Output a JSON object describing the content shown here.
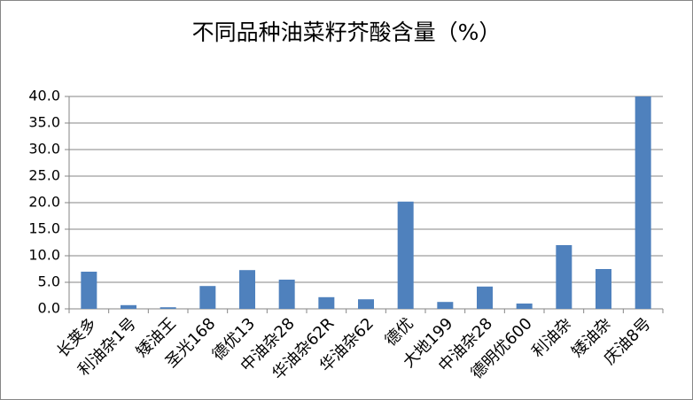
{
  "chart_data": {
    "type": "bar",
    "title": "不同品种油菜籽芥酸含量（%）",
    "categories": [
      "长荚多",
      "利油杂1号",
      "矮油王",
      "圣光168",
      "德优13",
      "中油杂28",
      "华油杂62R",
      "华油杂62",
      "德优",
      "大地199",
      "中油杂28",
      "德明优600",
      "利油杂",
      "矮油杂",
      "庆油8号"
    ],
    "values": [
      7.0,
      0.7,
      0.3,
      4.3,
      7.3,
      5.5,
      2.2,
      1.8,
      20.2,
      1.3,
      4.2,
      1.0,
      12.0,
      7.5,
      40.0
    ],
    "color": "#4f81bd",
    "ylim": [
      0,
      40
    ],
    "yticks": [
      {
        "value": 0,
        "label": "0.0"
      },
      {
        "value": 5,
        "label": "5.0"
      },
      {
        "value": 10,
        "label": "10.0"
      },
      {
        "value": 15,
        "label": "15.0"
      },
      {
        "value": 20,
        "label": "20.0"
      },
      {
        "value": 25,
        "label": "25.0"
      },
      {
        "value": 30,
        "label": "30.0"
      },
      {
        "value": 35,
        "label": "35.0"
      },
      {
        "value": 40,
        "label": "40.0"
      }
    ],
    "grid": true
  }
}
